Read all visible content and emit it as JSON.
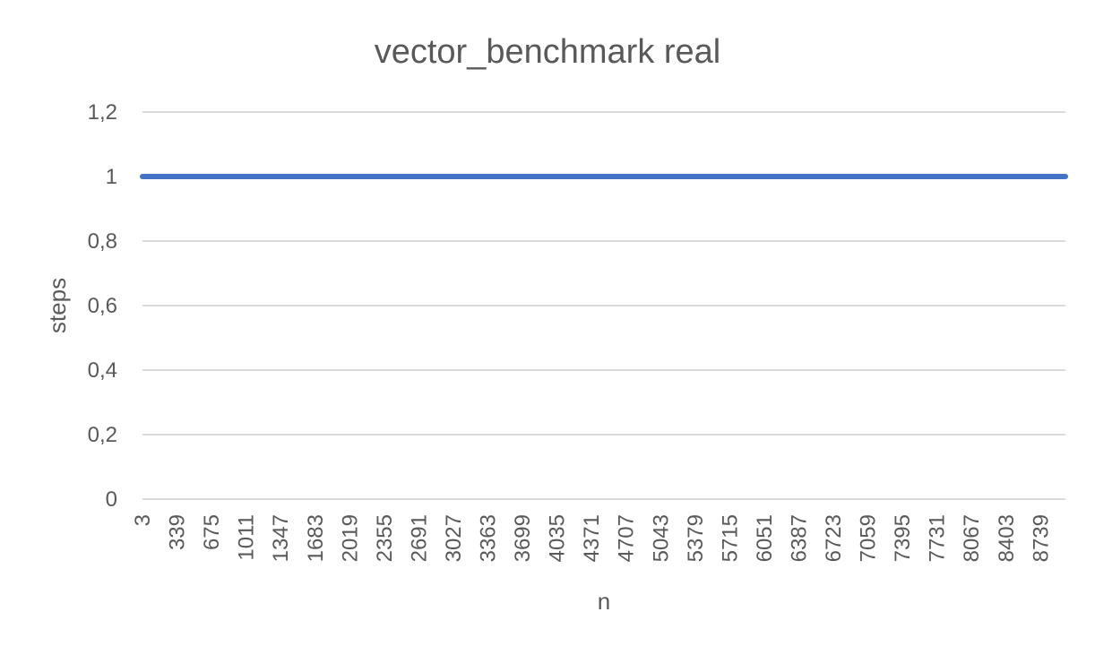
{
  "colors": {
    "series": "#4472c4",
    "grid": "#d9d9d9",
    "text": "#595959",
    "background": "#ffffff"
  },
  "chart_data": {
    "type": "line",
    "title": "vector_benchmark real",
    "xlabel": "n",
    "ylabel": "steps",
    "x_tick_labels": [
      "3",
      "339",
      "675",
      "1011",
      "1347",
      "1683",
      "2019",
      "2355",
      "2691",
      "3027",
      "3363",
      "3699",
      "4035",
      "4371",
      "4707",
      "5043",
      "5379",
      "5715",
      "6051",
      "6387",
      "6723",
      "7059",
      "7395",
      "7731",
      "8067",
      "8403",
      "8739"
    ],
    "x_range": [
      3,
      9000
    ],
    "y_tick_labels": [
      "0",
      "0,2",
      "0,4",
      "0,6",
      "0,8",
      "1",
      "1,2"
    ],
    "y_ticks": [
      0,
      0.2,
      0.4,
      0.6,
      0.8,
      1,
      1.2
    ],
    "ylim": [
      0,
      1.2
    ],
    "grid": true,
    "legend": "none",
    "series": [
      {
        "x": [
          3,
          9000
        ],
        "values": [
          1,
          1
        ]
      }
    ]
  }
}
